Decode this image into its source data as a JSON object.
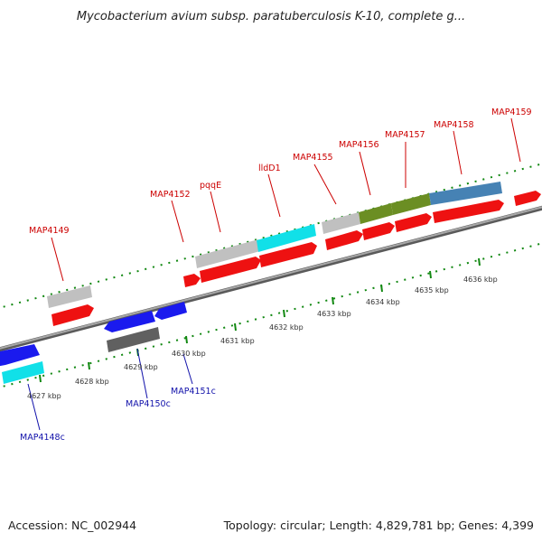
{
  "title": "Mycobacterium avium subsp. paratuberculosis K-10, complete g...",
  "footer": {
    "accession": "Accession: NC_002944",
    "topology": "Topology: circular; Length: 4,829,781 bp; Genes: 4,399"
  },
  "axis_labels": [
    "4627 kbp",
    "4628 kbp",
    "4629 kbp",
    "4630 kbp",
    "4631 kbp",
    "4632 kbp",
    "4633 kbp",
    "4634 kbp",
    "4635 kbp",
    "4636 kbp"
  ],
  "gene_labels_forward": [
    "MAP4149",
    "MAP4152",
    "pqqE",
    "lldD1",
    "MAP4155",
    "MAP4156",
    "MAP4157",
    "MAP4158",
    "MAP4159"
  ],
  "gene_labels_reverse": [
    "MAP4148c",
    "MAP4150c",
    "MAP4151c"
  ],
  "colors": {
    "forward_cds": "#ee1111",
    "reverse_cds": "#1a1aee",
    "backbone": "#808080",
    "ticks": "#118811",
    "light_gray": "#c0c0c0",
    "dark_gray": "#606060",
    "cyan": "#11e0e8",
    "olive": "#6b8e23",
    "steel_blue": "#4682b4"
  }
}
